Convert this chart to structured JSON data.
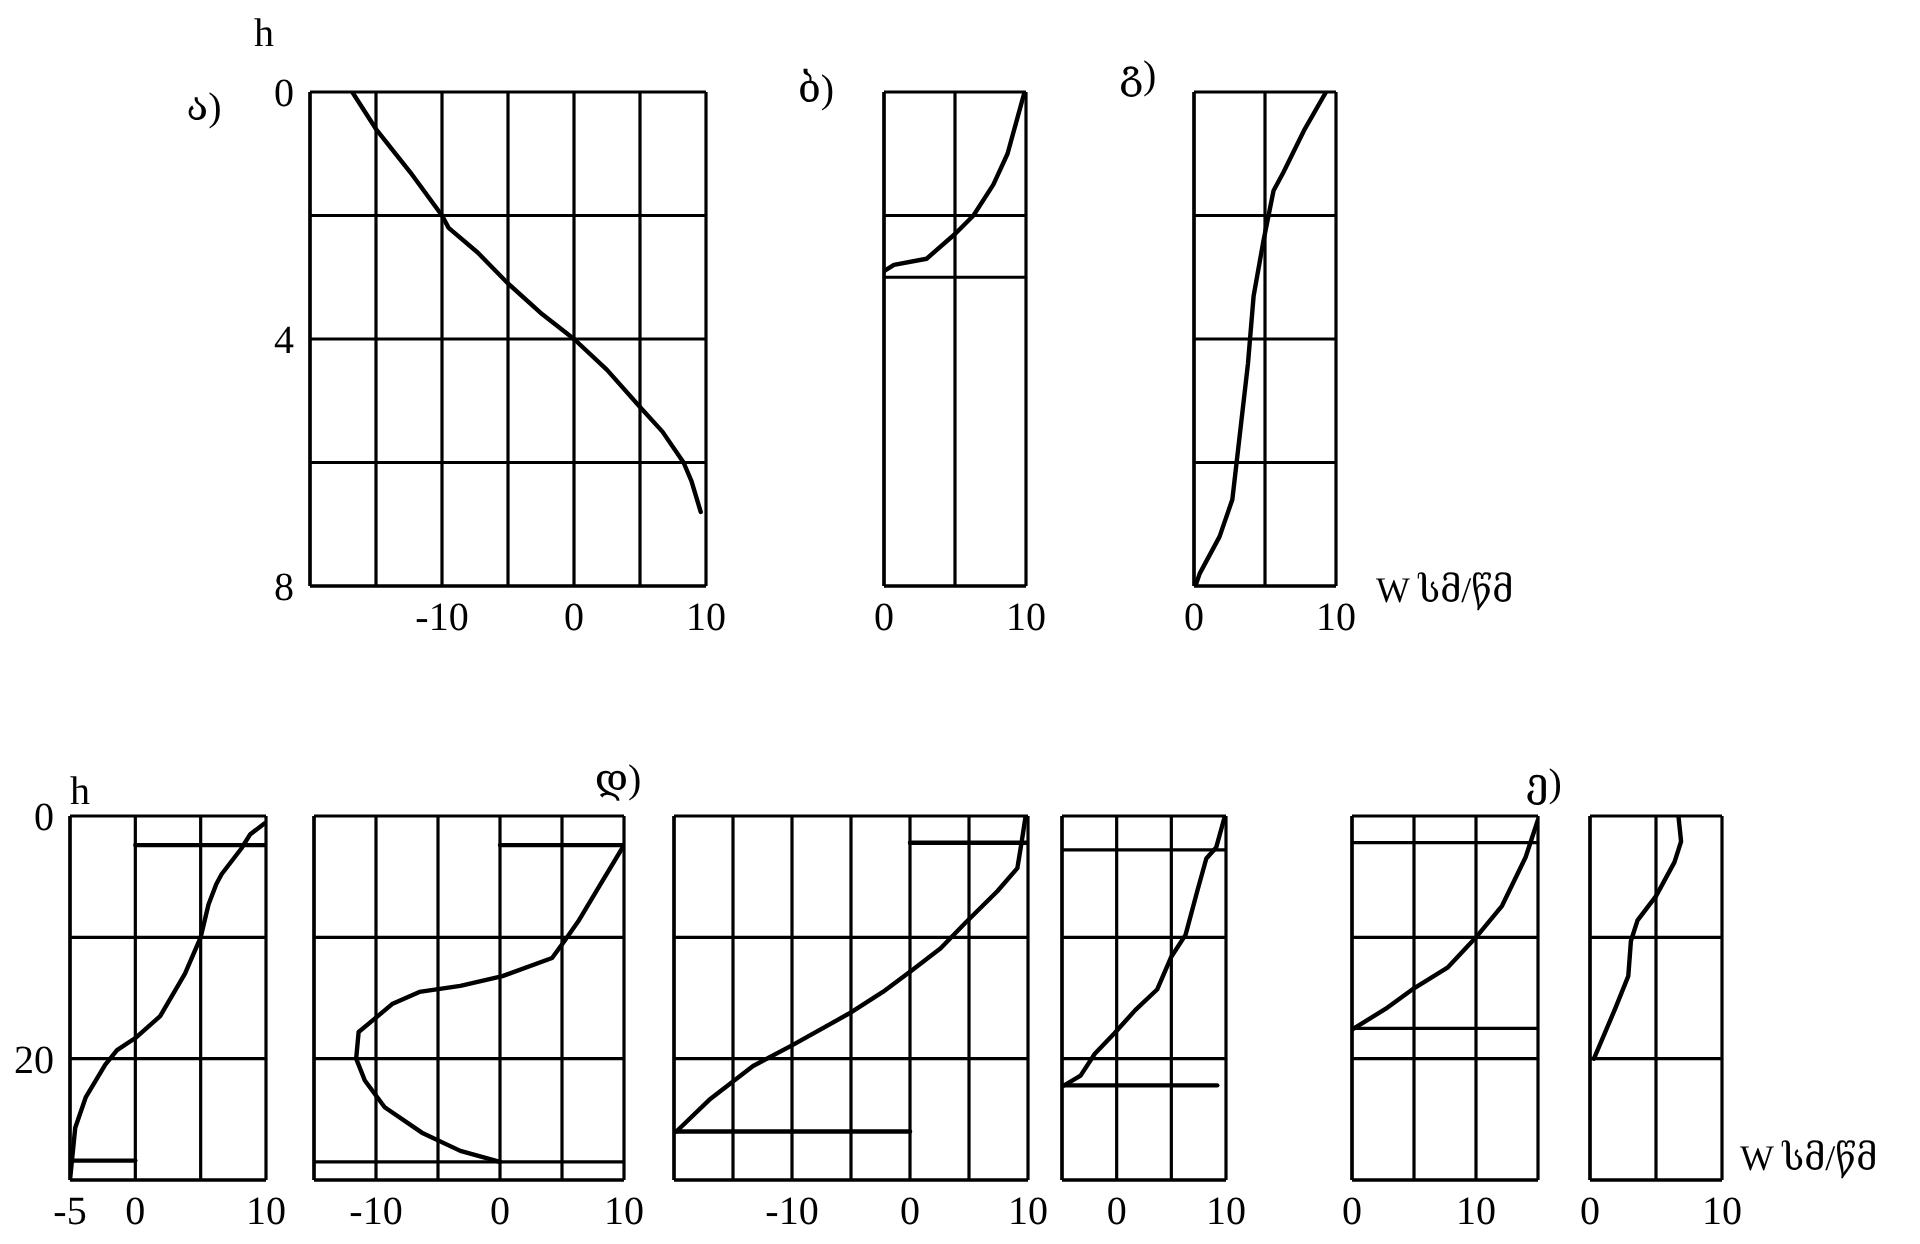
{
  "chart_data": [
    {
      "type": "line",
      "title": "ა)",
      "ylabel": "h",
      "xlim": [
        -20,
        10
      ],
      "xticks": [
        {
          "value": -20,
          "label": null
        },
        {
          "value": -15,
          "label": null
        },
        -10,
        {
          "value": -5,
          "label": null
        },
        0,
        {
          "value": 5,
          "label": null
        },
        10
      ],
      "ylim": [
        8,
        0
      ],
      "yticks": [
        0,
        {
          "value": 2,
          "label": null
        },
        4,
        {
          "value": 6,
          "label": null
        },
        8
      ],
      "grid": true,
      "series": [
        {
          "color": "#000000",
          "x": [
            -16.8,
            -15,
            -12.4,
            -10,
            -9.5,
            -7.3,
            -5,
            -2.4,
            0,
            2.5,
            5,
            6.7,
            8.3,
            8.9,
            9.6
          ],
          "values": [
            0,
            0.6,
            1.3,
            2,
            2.2,
            2.6,
            3.1,
            3.6,
            4,
            4.5,
            5.1,
            5.5,
            6,
            6.3,
            6.8
          ]
        }
      ]
    },
    {
      "type": "line",
      "title": "ბ)",
      "xlim": [
        0,
        10
      ],
      "xticks": [
        0,
        {
          "value": 5,
          "label": null
        },
        10
      ],
      "ylim": [
        8,
        0
      ],
      "yticks": [
        {
          "value": 0,
          "label": null
        },
        {
          "value": 2,
          "label": null
        },
        {
          "value": 8,
          "label": null
        }
      ],
      "grid": true,
      "tick_labels": "x",
      "ref_lines": [
        {
          "axis": "y",
          "value": 3,
          "color": "#000000"
        }
      ],
      "series": [
        {
          "color": "#000000",
          "x": [
            9.9,
            9.3,
            8.7,
            7.7,
            6.3,
            5,
            3,
            0.7,
            0
          ],
          "values": [
            0,
            0.5,
            1,
            1.5,
            2,
            2.3,
            2.7,
            2.8,
            2.9
          ]
        }
      ]
    },
    {
      "type": "line",
      "title": "გ)",
      "xlabel": "W სმ/წმ",
      "xlim": [
        0,
        10
      ],
      "xticks": [
        0,
        {
          "value": 5,
          "label": null
        },
        10
      ],
      "ylim": [
        8,
        0
      ],
      "yticks": [
        {
          "value": 0,
          "label": null
        },
        {
          "value": 2,
          "label": null
        },
        {
          "value": 4,
          "label": null
        },
        {
          "value": 6,
          "label": null
        },
        {
          "value": 8,
          "label": null
        }
      ],
      "grid": true,
      "tick_labels": "x",
      "series": [
        {
          "color": "#000000",
          "x": [
            9.3,
            7.8,
            6.3,
            5.6,
            4.9,
            4.2,
            3.8,
            3.1,
            2.7,
            1.8,
            0.4,
            0.1
          ],
          "values": [
            0,
            0.6,
            1.3,
            1.6,
            2.4,
            3.3,
            4.4,
            5.8,
            6.6,
            7.2,
            7.8,
            8
          ]
        }
      ]
    },
    {
      "type": "line",
      "ylabel": "h",
      "xlim": [
        -5,
        10
      ],
      "xticks": [
        -5,
        0,
        {
          "value": 5,
          "label": null
        },
        10
      ],
      "ylim": [
        30,
        0
      ],
      "yticks": [
        0,
        {
          "value": 10,
          "label": null
        },
        20,
        {
          "value": 30,
          "label": null
        }
      ],
      "grid": true,
      "series": [
        {
          "color": "#000000",
          "x": [
            9.9,
            8.8,
            8.1,
            6.6,
            6.2,
            5.6,
            5,
            3.8,
            1.9,
            0,
            -1.4,
            -2.3,
            -3.8,
            -4.6,
            -5
          ],
          "values": [
            0.6,
            1.5,
            2.7,
            4.8,
            5.6,
            7.3,
            10,
            13,
            16.5,
            18.3,
            19.3,
            20.5,
            23.2,
            25.7,
            30
          ]
        },
        {
          "color": "#000000",
          "x": [
            0,
            10
          ],
          "values": [
            2.4,
            2.4
          ]
        },
        {
          "color": "#000000",
          "x": [
            -5,
            0
          ],
          "values": [
            28.4,
            28.4
          ]
        }
      ]
    },
    {
      "type": "line",
      "title": "დ)",
      "xlim": [
        -15,
        10
      ],
      "xticks": [
        {
          "value": -15,
          "label": null
        },
        -10,
        {
          "value": -5,
          "label": null
        },
        0,
        {
          "value": 5,
          "label": null
        },
        10
      ],
      "ylim": [
        30,
        0
      ],
      "yticks": [
        {
          "value": 0,
          "label": null
        },
        {
          "value": 10,
          "label": null
        },
        {
          "value": 20,
          "label": null
        },
        {
          "value": 30,
          "label": null
        }
      ],
      "grid": true,
      "tick_labels": "x",
      "ref_lines": [
        {
          "axis": "y",
          "value": 28.5,
          "color": "#000000"
        }
      ],
      "series": [
        {
          "color": "#000000",
          "x": [
            10,
            8,
            6.3,
            5.2,
            4.2,
            0.2,
            -3.2,
            -6.5,
            -8.7,
            -10.1,
            -11.4,
            -11.6,
            -10.9,
            -9.3,
            -6.3,
            -3.2,
            0
          ],
          "values": [
            2.4,
            5.8,
            8.7,
            10.3,
            11.7,
            13.2,
            14,
            14.5,
            15.5,
            16.7,
            17.8,
            20,
            21.8,
            24,
            26.1,
            27.6,
            28.5
          ]
        },
        {
          "color": "#000000",
          "x": [
            0,
            10
          ],
          "values": [
            2.4,
            2.4
          ]
        }
      ]
    },
    {
      "type": "line",
      "xlim": [
        -20,
        10
      ],
      "xticks": [
        {
          "value": -20,
          "label": null
        },
        {
          "value": -15,
          "label": null
        },
        -10,
        {
          "value": -5,
          "label": null
        },
        0,
        {
          "value": 5,
          "label": null
        },
        10
      ],
      "ylim": [
        30,
        0
      ],
      "yticks": [
        {
          "value": 0,
          "label": null
        },
        {
          "value": 10,
          "label": null
        },
        {
          "value": 20,
          "label": null
        },
        {
          "value": 30,
          "label": null
        }
      ],
      "grid": true,
      "tick_labels": "x",
      "series": [
        {
          "color": "#000000",
          "x": [
            9.8,
            9.5,
            9.1,
            7.4,
            4.7,
            2.6,
            0.2,
            -2.3,
            -5.2,
            -10,
            -13.3,
            -16.9,
            -19.8
          ],
          "values": [
            0,
            1.9,
            4.3,
            6.2,
            8.8,
            10.9,
            12.7,
            14.5,
            16.3,
            18.9,
            20.6,
            23.3,
            26
          ]
        },
        {
          "color": "#000000",
          "x": [
            0,
            10
          ],
          "values": [
            2.2,
            2.2
          ]
        },
        {
          "color": "#000000",
          "x": [
            -20,
            0
          ],
          "values": [
            26,
            26
          ]
        }
      ]
    },
    {
      "type": "line",
      "xlim": [
        -5,
        10
      ],
      "xticks": [
        {
          "value": -5,
          "label": null
        },
        0,
        {
          "value": 5,
          "label": null
        },
        10
      ],
      "ylim": [
        30,
        0
      ],
      "yticks": [
        {
          "value": 0,
          "label": null
        },
        {
          "value": 10,
          "label": null
        },
        {
          "value": 20,
          "label": null
        },
        {
          "value": 30,
          "label": null
        }
      ],
      "grid": true,
      "tick_labels": "x",
      "ref_lines": [
        {
          "axis": "y",
          "value": 2.8,
          "color": "#000000"
        }
      ],
      "series": [
        {
          "color": "#000000",
          "x": [
            9.9,
            9.1,
            8.2,
            7.4,
            6.3,
            5,
            3.7,
            1.7,
            -0.2,
            -2,
            -3.3,
            -4.8
          ],
          "values": [
            0,
            2.6,
            3.5,
            6.1,
            9.8,
            11.6,
            14.3,
            16,
            17.9,
            19.6,
            21.4,
            22.2
          ]
        },
        {
          "color": "#000000",
          "x": [
            -5,
            9.2
          ],
          "values": [
            22.2,
            22.2
          ]
        }
      ]
    },
    {
      "type": "line",
      "title": "ე)",
      "xlim": [
        0,
        15
      ],
      "xticks": [
        0,
        {
          "value": 5,
          "label": null
        },
        10,
        {
          "value": 15,
          "label": null
        }
      ],
      "ylim": [
        30,
        0
      ],
      "yticks": [
        {
          "value": 0,
          "label": null
        },
        {
          "value": 10,
          "label": null
        },
        {
          "value": 20,
          "label": null
        },
        {
          "value": 30,
          "label": null
        }
      ],
      "grid": true,
      "tick_labels": "x",
      "ref_lines": [
        {
          "axis": "y",
          "value": 2.2,
          "color": "#000000"
        },
        {
          "axis": "y",
          "value": 17.5,
          "color": "#000000"
        }
      ],
      "series": [
        {
          "color": "#000000",
          "x": [
            15,
            14,
            12.1,
            10,
            7.7,
            5,
            2.7,
            0
          ],
          "values": [
            0.3,
            3.4,
            7.4,
            10,
            12.5,
            14.2,
            15.9,
            17.6
          ]
        }
      ]
    },
    {
      "type": "line",
      "xlabel": "W სმ/წმ",
      "xlim": [
        0,
        10
      ],
      "xticks": [
        0,
        {
          "value": 5,
          "label": null
        },
        10
      ],
      "ylim": [
        30,
        0
      ],
      "yticks": [
        {
          "value": 0,
          "label": null
        },
        {
          "value": 10,
          "label": null
        },
        {
          "value": 20,
          "label": null
        },
        {
          "value": 30,
          "label": null
        }
      ],
      "grid": true,
      "tick_labels": "x",
      "series": [
        {
          "color": "#000000",
          "x": [
            6.7,
            6.9,
            6.4,
            5,
            3.6,
            3.1,
            2.9,
            1.9,
            1,
            0.3
          ],
          "values": [
            0,
            2.1,
            3.8,
            6.6,
            8.6,
            10.3,
            13.2,
            15.9,
            18.2,
            20
          ]
        }
      ]
    }
  ]
}
